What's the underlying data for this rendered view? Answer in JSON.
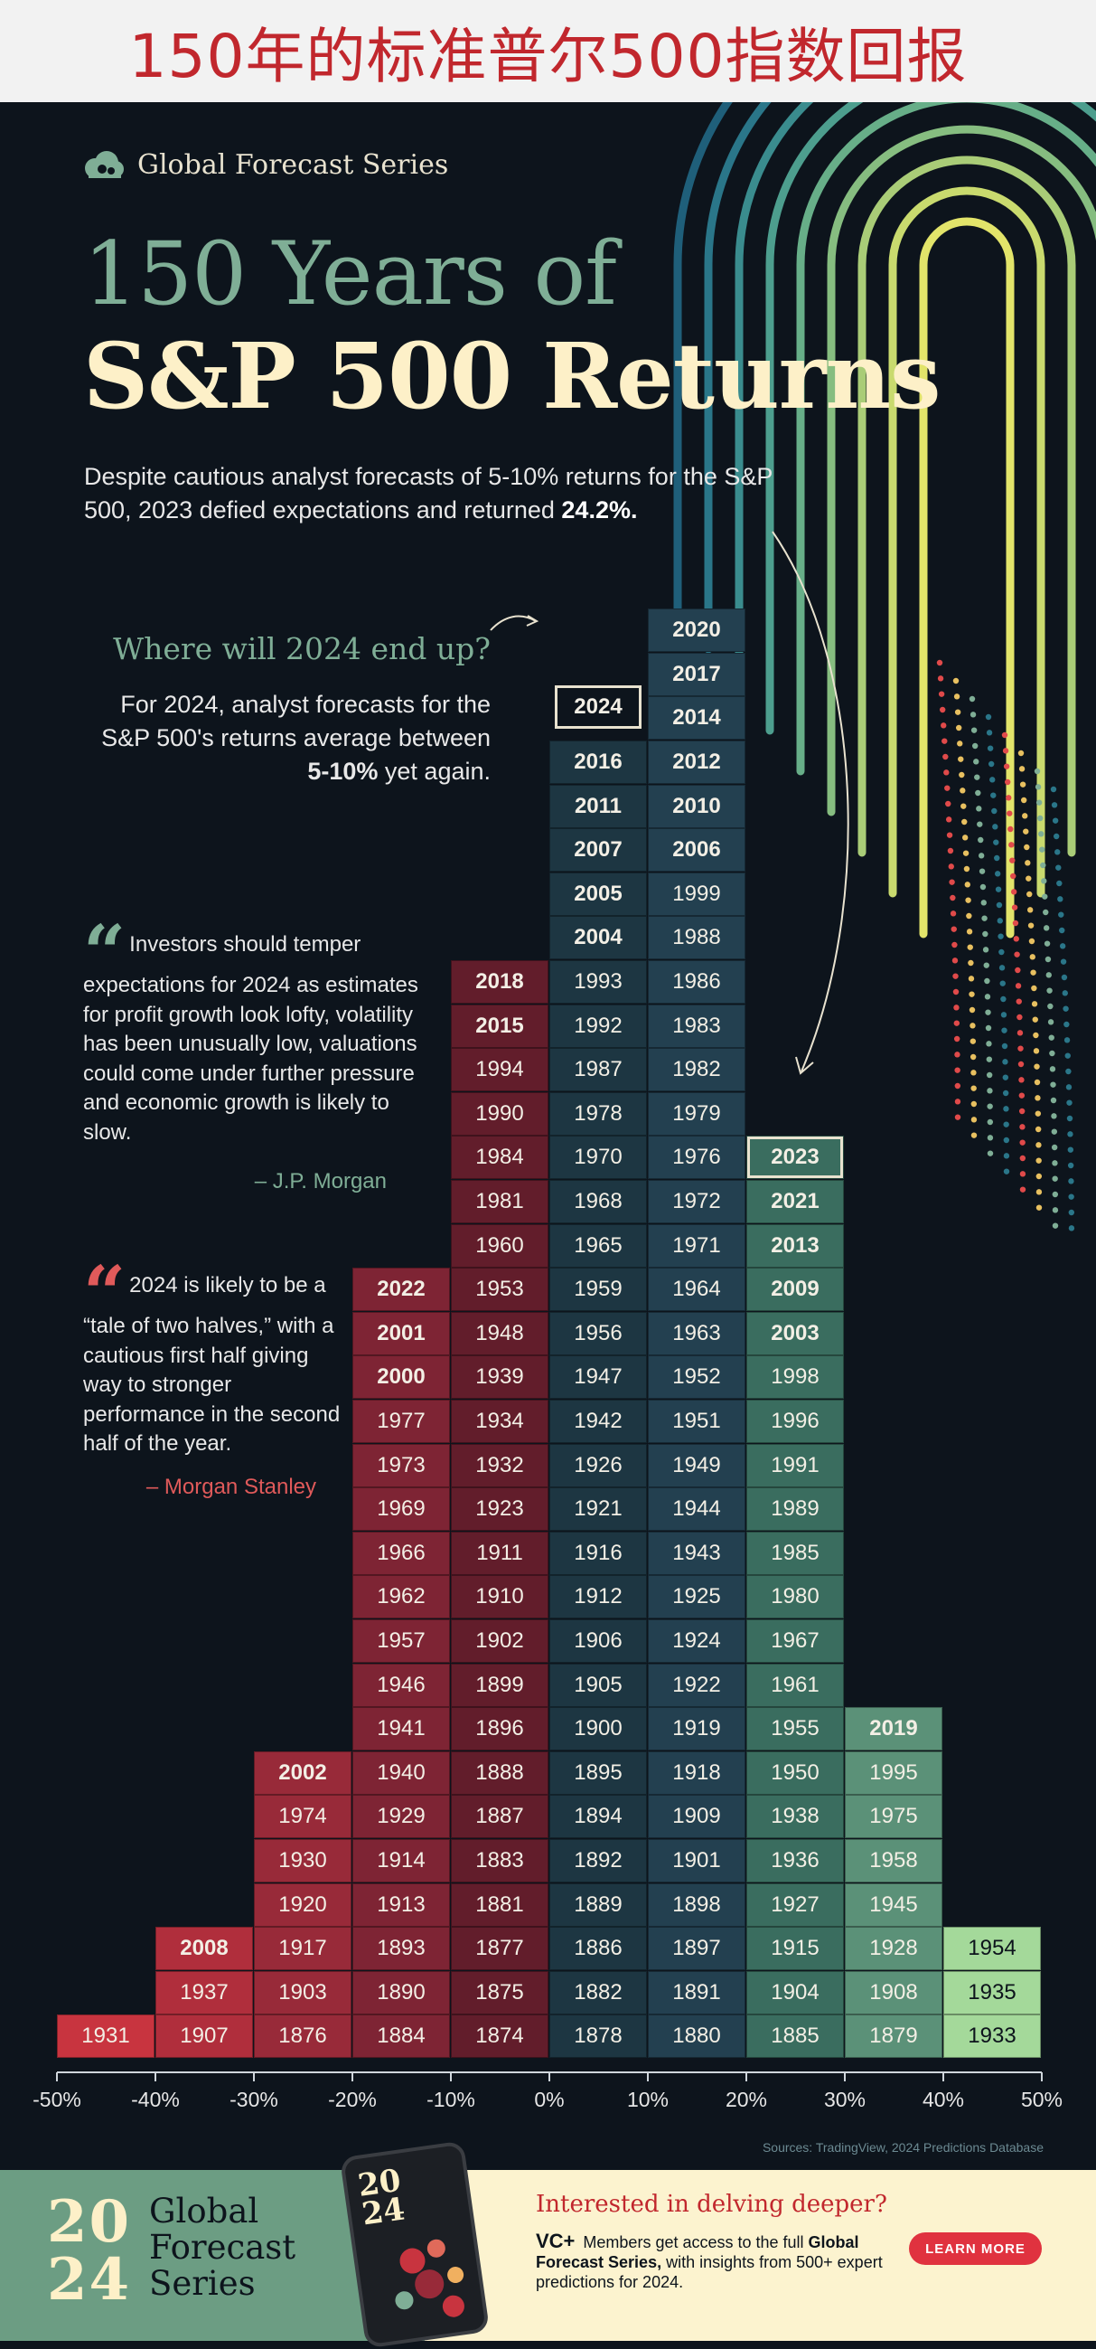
{
  "banner": {
    "text": "150年的标准普尔500指数回报"
  },
  "brand": {
    "name": "Global Forecast Series",
    "icon": "cloud-logo-icon"
  },
  "headline": {
    "line1": "150 Years of",
    "line2": "S&P 500 Returns"
  },
  "intro": {
    "text": "Despite cautious analyst forecasts of 5-10% returns for the S&P 500, 2023 defied expectations and returned ",
    "highlight": "24.2%."
  },
  "forecast": {
    "question": "Where will 2024 end up?",
    "text_before": "For 2024, analyst forecasts for the S&P 500's returns average between ",
    "text_bold": "5-10%",
    "text_after": " yet again."
  },
  "quotes": [
    {
      "text": "Investors should temper expectations for 2024 as estimates for profit growth look lofty, volatility has been unusually low, valuations could come under further pressure and economic growth is likely to slow.",
      "author": "– J.P. Morgan",
      "color": "#7fae96"
    },
    {
      "text": "2024 is likely to be a “tale of two halves,” with a cautious first half giving way to stronger performance in the second half of the year.",
      "author": "– Morgan Stanley",
      "color": "#e05a5a"
    }
  ],
  "chart_data": {
    "type": "histogram",
    "x_axis": {
      "unit": "annual return",
      "ticks": [
        "-50%",
        "-40%",
        "-30%",
        "-20%",
        "-10%",
        "0%",
        "10%",
        "20%",
        "30%",
        "40%",
        "50%"
      ],
      "range": [
        -50,
        50
      ]
    },
    "bins": [
      {
        "range": [
          -50,
          -40
        ],
        "years": [
          "1931"
        ],
        "bold": []
      },
      {
        "range": [
          -40,
          -30
        ],
        "years": [
          "1907",
          "1937",
          "2008"
        ],
        "bold": [
          "2008"
        ]
      },
      {
        "range": [
          -30,
          -20
        ],
        "years": [
          "1876",
          "1903",
          "1917",
          "1920",
          "1930",
          "1974",
          "2002"
        ],
        "bold": [
          "2002"
        ]
      },
      {
        "range": [
          -20,
          -10
        ],
        "years": [
          "1884",
          "1890",
          "1893",
          "1913",
          "1914",
          "1929",
          "1940",
          "1941",
          "1946",
          "1957",
          "1962",
          "1966",
          "1969",
          "1973",
          "1977",
          "2000",
          "2001",
          "2022"
        ],
        "bold": [
          "2000",
          "2001",
          "2022"
        ]
      },
      {
        "range": [
          -10,
          0
        ],
        "years": [
          "1874",
          "1875",
          "1877",
          "1881",
          "1883",
          "1887",
          "1888",
          "1896",
          "1899",
          "1902",
          "1910",
          "1911",
          "1923",
          "1932",
          "1934",
          "1939",
          "1948",
          "1953",
          "1960",
          "1981",
          "1984",
          "1990",
          "1994",
          "2015",
          "2018"
        ],
        "bold": [
          "2015",
          "2018"
        ]
      },
      {
        "range": [
          0,
          10
        ],
        "years": [
          "1878",
          "1882",
          "1886",
          "1889",
          "1892",
          "1894",
          "1895",
          "1900",
          "1905",
          "1906",
          "1912",
          "1916",
          "1921",
          "1926",
          "1942",
          "1947",
          "1956",
          "1959",
          "1965",
          "1968",
          "1970",
          "1978",
          "1987",
          "1992",
          "1993",
          "2004",
          "2005",
          "2007",
          "2011",
          "2016"
        ],
        "bold": [
          "2004",
          "2005",
          "2007",
          "2011",
          "2016"
        ]
      },
      {
        "range": [
          10,
          20
        ],
        "years": [
          "1880",
          "1891",
          "1897",
          "1898",
          "1901",
          "1909",
          "1918",
          "1919",
          "1922",
          "1924",
          "1925",
          "1943",
          "1944",
          "1949",
          "1951",
          "1952",
          "1963",
          "1964",
          "1971",
          "1972",
          "1976",
          "1979",
          "1982",
          "1983",
          "1986",
          "1988",
          "1999",
          "2006",
          "2010",
          "2012",
          "2014",
          "2017",
          "2020"
        ],
        "bold": [
          "2006",
          "2010",
          "2012",
          "2014",
          "2017",
          "2020"
        ]
      },
      {
        "range": [
          20,
          30
        ],
        "years": [
          "1885",
          "1904",
          "1915",
          "1927",
          "1936",
          "1938",
          "1950",
          "1955",
          "1961",
          "1967",
          "1980",
          "1985",
          "1989",
          "1991",
          "1996",
          "1998",
          "2003",
          "2009",
          "2013",
          "2021",
          "2023"
        ],
        "bold": [
          "2003",
          "2009",
          "2013",
          "2021",
          "2023"
        ]
      },
      {
        "range": [
          30,
          40
        ],
        "years": [
          "1879",
          "1908",
          "1928",
          "1945",
          "1958",
          "1975",
          "1995",
          "2019"
        ],
        "bold": [
          "2019"
        ]
      },
      {
        "range": [
          40,
          50
        ],
        "years": [
          "1933",
          "1935",
          "1954"
        ],
        "bold": []
      }
    ],
    "outlined": [
      "2023"
    ],
    "pending": {
      "year": "2024",
      "range": [
        0,
        10
      ]
    },
    "colors": [
      "#c8343f",
      "#b02e3c",
      "#982a39",
      "#7e2434",
      "#621d2b",
      "#1d3642",
      "#234050",
      "#3a6d5f",
      "#5b9178",
      "#a4d99a"
    ]
  },
  "sources": "Sources: TradingView, 2024 Predictions Database",
  "footer": {
    "year_top": "20",
    "year_bottom": "24",
    "series_lines": [
      "Global",
      "Forecast",
      "Series"
    ],
    "cta_title": "Interested in delving deeper?",
    "vc_logo": "VC+",
    "cta_text_1": " Members get access to the full ",
    "cta_text_bold": "Global Forecast Series,",
    "cta_text_2": " with insights from 500+ expert predictions for 2024.",
    "button": "LEARN MORE"
  }
}
